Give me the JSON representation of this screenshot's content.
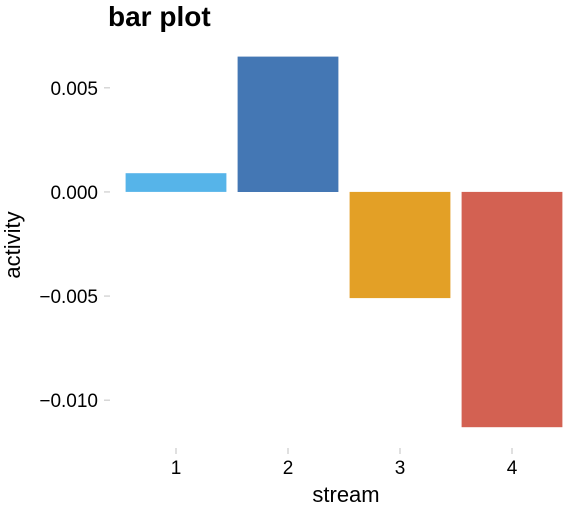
{
  "chart_data": {
    "type": "bar",
    "title": "bar plot",
    "xlabel": "stream",
    "ylabel": "activity",
    "categories": [
      "1",
      "2",
      "3",
      "4"
    ],
    "values": [
      0.0009,
      0.0065,
      -0.0051,
      -0.0113
    ],
    "colors": [
      "#56B4E9",
      "#4477B4",
      "#E3A026",
      "#D36152"
    ],
    "ylim": [
      -0.0122,
      0.0072
    ],
    "yticks": [
      0.005,
      0.0,
      -0.005,
      -0.01
    ],
    "ytick_labels": [
      "0.005",
      "0.000",
      "−0.005",
      "−0.010"
    ],
    "grid": false,
    "legend": "none"
  }
}
